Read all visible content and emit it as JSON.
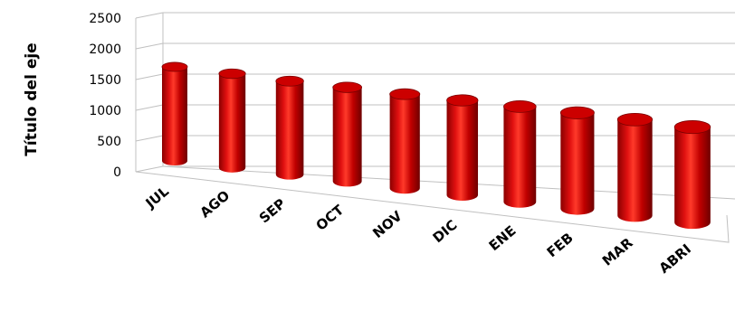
{
  "chart_data": {
    "type": "bar",
    "style": "3d-cylinder",
    "categories": [
      "JUL",
      "AGO",
      "SEP",
      "OCT",
      "NOV",
      "DIC",
      "ENE",
      "FEB",
      "MAR",
      "ABRI"
    ],
    "values": [
      1500,
      1500,
      1490,
      1500,
      1500,
      1510,
      1520,
      1530,
      1530,
      1520
    ],
    "title": "",
    "xlabel": "",
    "ylabel": "Título del eje",
    "ylim": [
      0,
      2500
    ],
    "yticks": [
      0,
      500,
      1000,
      1500,
      2000,
      2500
    ],
    "grid": true,
    "legend": "none",
    "colors": {
      "bar": "#cc0000",
      "bar_dark": "#7a0000",
      "bar_light": "#ff5a4a",
      "grid": "#c0c0c0"
    }
  }
}
